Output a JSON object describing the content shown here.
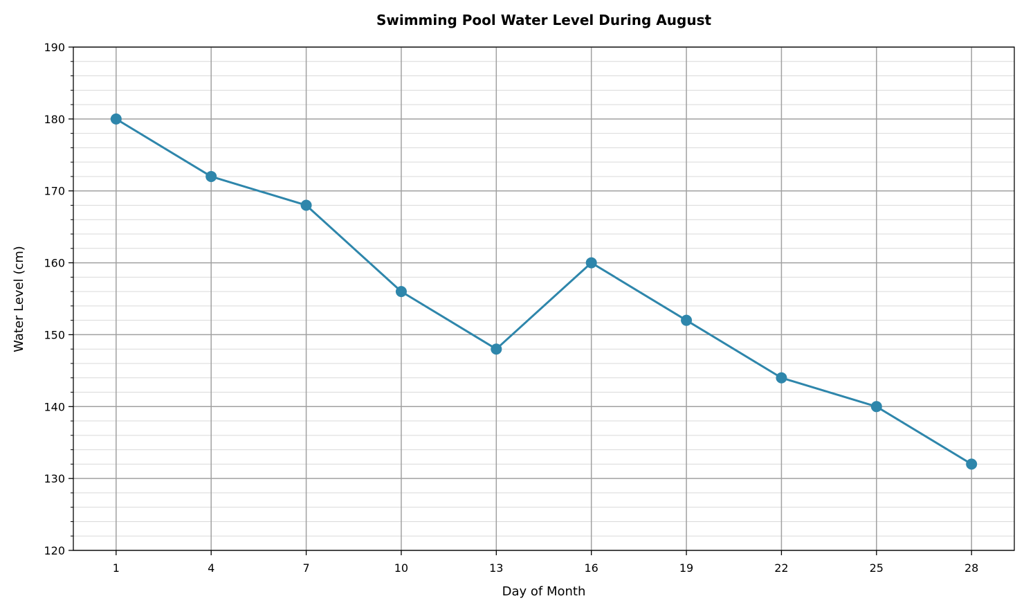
{
  "chart_data": {
    "type": "line",
    "title": "Swimming Pool Water Level During August",
    "xlabel": "Day of Month",
    "ylabel": "Water Level (cm)",
    "x": [
      1,
      4,
      7,
      10,
      13,
      16,
      19,
      22,
      25,
      28
    ],
    "series": [
      {
        "values": [
          180,
          172,
          168,
          156,
          148,
          160,
          152,
          144,
          140,
          132
        ],
        "color": "#2e86ab",
        "marker": "circle"
      }
    ],
    "xticks": [
      1,
      4,
      7,
      10,
      13,
      16,
      19,
      22,
      25,
      28
    ],
    "yticks": [
      120,
      130,
      140,
      150,
      160,
      170,
      180,
      190
    ],
    "ylim": [
      120,
      190
    ],
    "xlim": [
      -0.35,
      29.35
    ],
    "y_minor_step": 2,
    "grid": true
  }
}
